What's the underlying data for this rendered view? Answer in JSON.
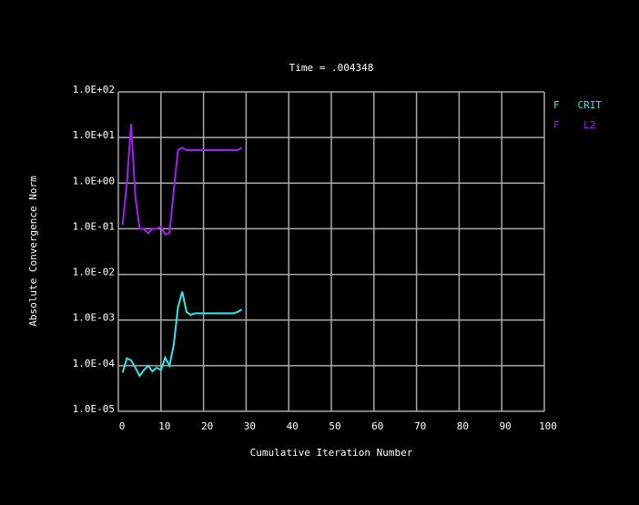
{
  "chart_data": {
    "type": "line",
    "title": "Time = .004348",
    "x_label": "Cumulative Iteration Number",
    "y_label": "Absolute Convergence Norm",
    "log_y": true,
    "grid": true,
    "legend": "top-right",
    "x": [
      1,
      2,
      3,
      4,
      5,
      6,
      7,
      8,
      9,
      10,
      11,
      12,
      13,
      14,
      15,
      16,
      17,
      18,
      19,
      20,
      21,
      22,
      23,
      24,
      25,
      26,
      27,
      28,
      29
    ],
    "series": [
      {
        "name": "F   CRIT",
        "color": "#33e6e6",
        "values": [
          7e-05,
          0.000145,
          0.00013,
          9e-05,
          6e-05,
          8e-05,
          0.0001,
          7.5e-05,
          9e-05,
          8e-05,
          0.00015,
          0.0001,
          0.00028,
          0.0019,
          0.0042,
          0.0015,
          0.0013,
          0.0014,
          0.0014,
          0.0014,
          0.0014,
          0.0014,
          0.0014,
          0.0014,
          0.0014,
          0.0014,
          0.0014,
          0.0015,
          0.0017
        ]
      },
      {
        "name": "F    L2",
        "color": "#a020f0",
        "values": [
          0.12,
          1,
          20,
          0.5,
          0.1,
          0.1,
          0.08,
          0.1,
          0.1,
          0.11,
          0.075,
          0.08,
          0.67,
          5.3,
          6,
          5.3,
          5.3,
          5.3,
          5.3,
          5.3,
          5.3,
          5.3,
          5.3,
          5.3,
          5.3,
          5.3,
          5.3,
          5.3,
          6
        ]
      }
    ],
    "xlim": [
      0,
      100
    ],
    "xticks": [
      0,
      10,
      20,
      30,
      40,
      50,
      60,
      70,
      80,
      90,
      100
    ],
    "ylim": [
      1e-05,
      100
    ],
    "yticks": [
      {
        "value": 1e-05,
        "label": "1.0E-05"
      },
      {
        "value": 0.0001,
        "label": "1.0E-04"
      },
      {
        "value": 0.001,
        "label": "1.0E-03"
      },
      {
        "value": 0.01,
        "label": "1.0E-02"
      },
      {
        "value": 0.1,
        "label": "1.0E-01"
      },
      {
        "value": 1,
        "label": "1.0E+00"
      },
      {
        "value": 10,
        "label": "1.0E+01"
      },
      {
        "value": 100,
        "label": "1.0E+02"
      }
    ]
  }
}
